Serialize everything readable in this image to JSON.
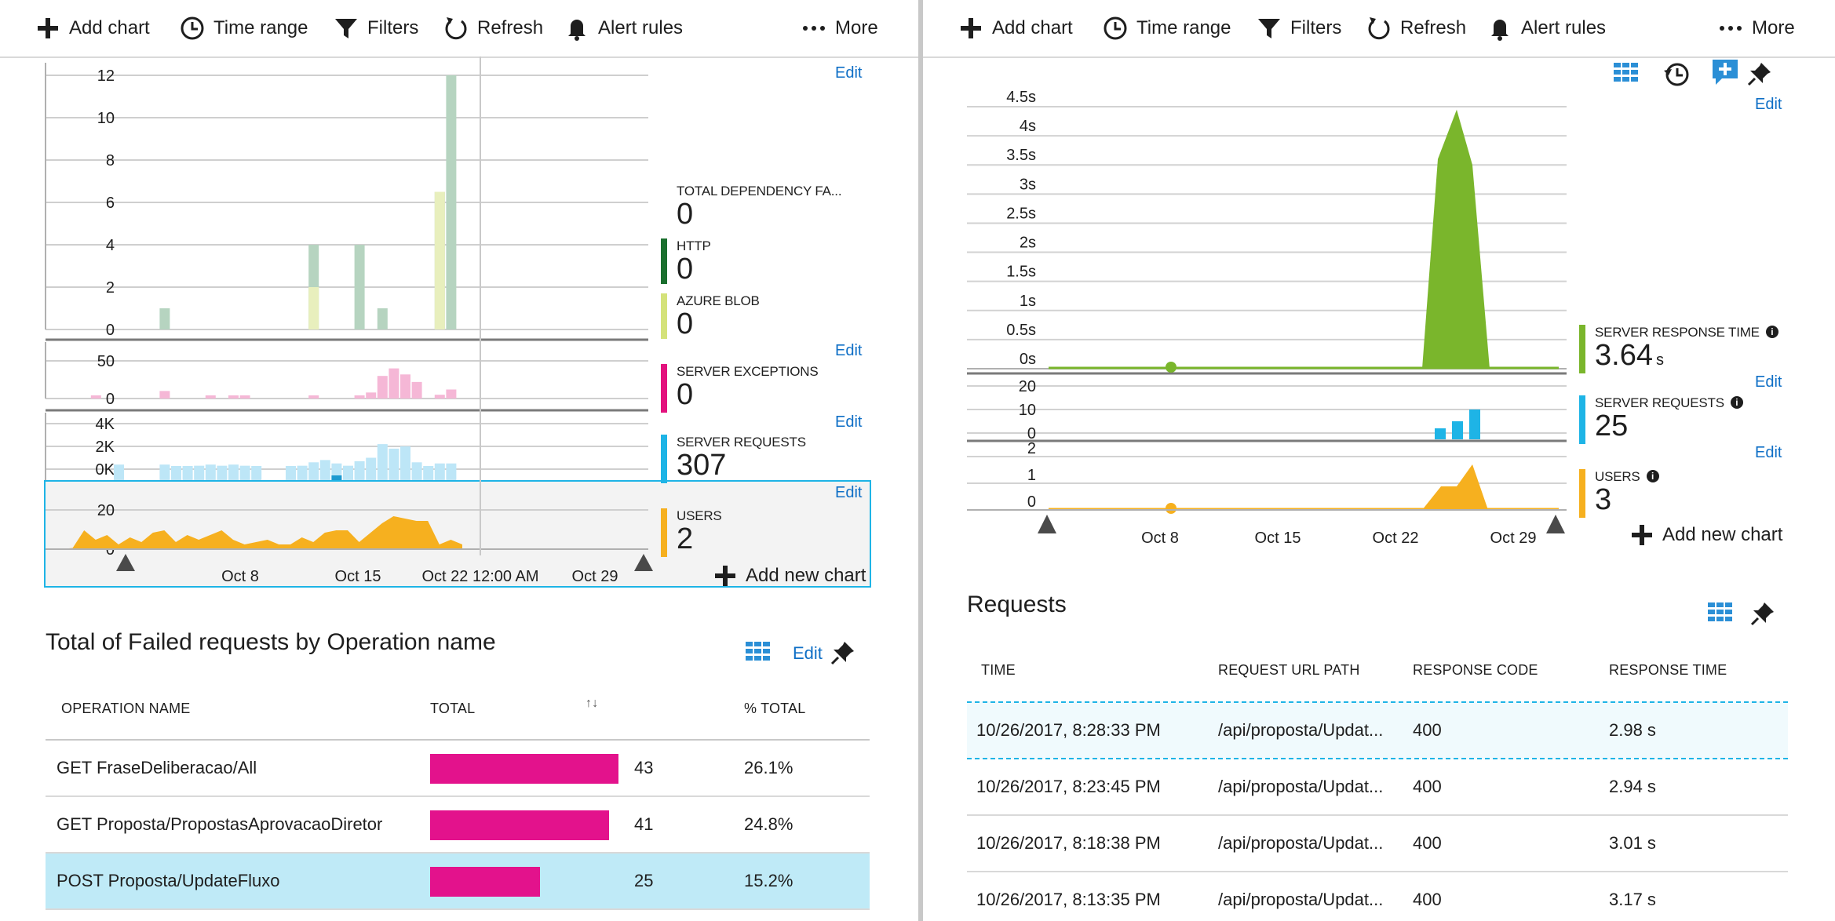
{
  "toolbar": {
    "add_chart": "Add chart",
    "time_range": "Time range",
    "filters": "Filters",
    "refresh": "Refresh",
    "alert_rules": "Alert rules",
    "more": "More"
  },
  "colors": {
    "http": "#1a6f2e",
    "azure_blob": "#d4e27a",
    "server_exceptions": "#e3127e",
    "server_requests": "#1eb4e6",
    "users": "#f6b01f",
    "response_time": "#7ab62c",
    "link": "#0f6fc6",
    "failed_bar": "#e3128c",
    "selected_row": "#bfeaf7"
  },
  "left": {
    "edit_label": "Edit",
    "dependency_chart": {
      "y_ticks": [
        "0",
        "2",
        "4",
        "6",
        "8",
        "10",
        "12"
      ],
      "metrics": [
        {
          "label": "TOTAL DEPENDENCY FA...",
          "value": "0"
        },
        {
          "label": "HTTP",
          "value": "0"
        },
        {
          "label": "AZURE BLOB",
          "value": "0"
        }
      ]
    },
    "exceptions_chart": {
      "y_ticks": [
        "0",
        "50"
      ],
      "metric": {
        "label": "SERVER EXCEPTIONS",
        "value": "0"
      }
    },
    "requests_chart": {
      "y_ticks": [
        "0K",
        "2K",
        "4K"
      ],
      "metric": {
        "label": "SERVER REQUESTS",
        "value": "307"
      }
    },
    "users_chart": {
      "y_ticks": [
        "0",
        "20"
      ],
      "metric": {
        "label": "USERS",
        "value": "2"
      },
      "x_ticks": [
        "Oct 8",
        "Oct 15",
        "Oct 22 12:00 AM",
        "Oct 29"
      ]
    },
    "add_new_chart": "Add new chart",
    "failed_table": {
      "title": "Total of Failed requests by Operation name",
      "headers": [
        "OPERATION NAME",
        "TOTAL",
        "% TOTAL"
      ],
      "sort_glyph": "↑↓",
      "rows": [
        {
          "name": "GET FraseDeliberacao/All",
          "total": "43",
          "pct": "26.1%"
        },
        {
          "name": "GET Proposta/PropostasAprovacaoDiretor",
          "total": "41",
          "pct": "24.8%"
        },
        {
          "name": "POST Proposta/UpdateFluxo",
          "total": "25",
          "pct": "15.2%"
        }
      ]
    }
  },
  "right": {
    "edit_label": "Edit",
    "response_chart": {
      "y_ticks": [
        "0s",
        "0.5s",
        "1s",
        "1.5s",
        "2s",
        "2.5s",
        "3s",
        "3.5s",
        "4s",
        "4.5s"
      ],
      "metric": {
        "label": "SERVER RESPONSE TIME",
        "value": "3.64",
        "unit": "s"
      }
    },
    "requests_chart": {
      "y_ticks": [
        "0",
        "10",
        "20"
      ],
      "metric": {
        "label": "SERVER REQUESTS",
        "value": "25"
      }
    },
    "users_chart": {
      "y_ticks": [
        "0",
        "1",
        "2"
      ],
      "metric": {
        "label": "USERS",
        "value": "3"
      },
      "x_ticks": [
        "Oct 8",
        "Oct 15",
        "Oct 22",
        "Oct 29"
      ]
    },
    "add_new_chart": "Add new chart",
    "requests_table": {
      "title": "Requests",
      "headers": [
        "TIME",
        "REQUEST URL PATH",
        "RESPONSE CODE",
        "RESPONSE TIME"
      ],
      "rows": [
        {
          "time": "10/26/2017, 8:28:33 PM",
          "path": "/api/proposta/Updat...",
          "code": "400",
          "resp": "2.98 s"
        },
        {
          "time": "10/26/2017, 8:23:45 PM",
          "path": "/api/proposta/Updat...",
          "code": "400",
          "resp": "2.94 s"
        },
        {
          "time": "10/26/2017, 8:18:38 PM",
          "path": "/api/proposta/Updat...",
          "code": "400",
          "resp": "3.01 s"
        },
        {
          "time": "10/26/2017, 8:13:35 PM",
          "path": "/api/proposta/Updat...",
          "code": "400",
          "resp": "3.17 s"
        }
      ]
    }
  }
}
